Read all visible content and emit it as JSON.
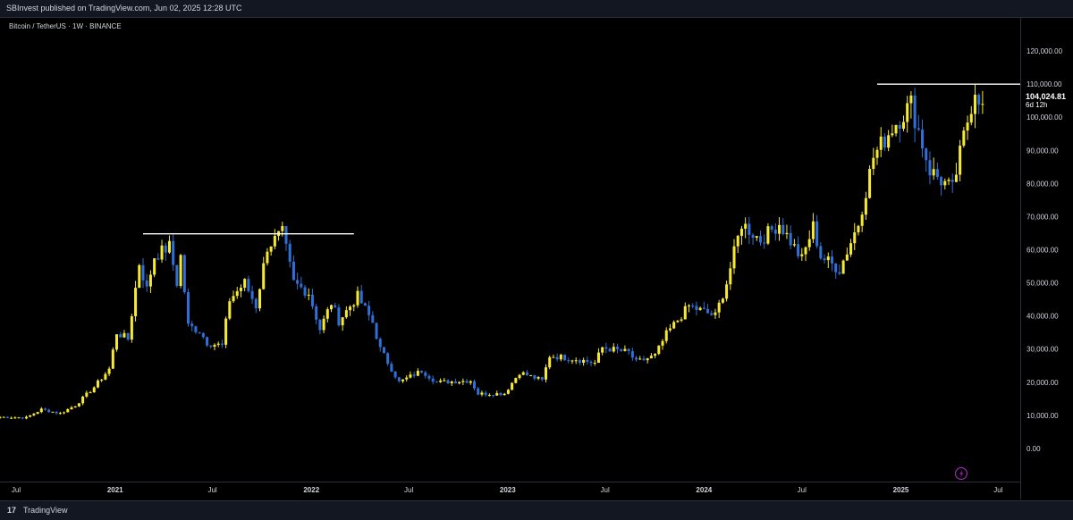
{
  "header": {
    "published": "SBInvest published on TradingView.com, Jun 02, 2025 12:28 UTC"
  },
  "symbol_line": "Bitcoin / TetherUS · 1W · BINANCE",
  "footer": {
    "brand": "TradingView",
    "logo_text": "17"
  },
  "price_label": {
    "value": "104,024.81",
    "countdown": "6d 12h"
  },
  "colors": {
    "up": "#f7e92f",
    "down": "#2f6fd6",
    "background": "#000000",
    "bars": "#131722",
    "line": "#ffffff",
    "lightning": "#9c27b0"
  },
  "icons": {
    "lightning": "lightning-icon",
    "logo": "tradingview-logo-icon"
  },
  "chart_data": {
    "type": "candlestick",
    "title": "Bitcoin / TetherUS · 1W · BINANCE",
    "ylim": [
      -10000,
      130000
    ],
    "y_ticks": [
      0,
      10000,
      20000,
      30000,
      40000,
      50000,
      60000,
      70000,
      80000,
      90000,
      100000,
      110000,
      120000
    ],
    "y_tick_labels": [
      "0.00",
      "10,000.00",
      "20,000.00",
      "30,000.00",
      "40,000.00",
      "50,000.00",
      "60,000.00",
      "70,000.00",
      "80,000.00",
      "90,000.00",
      "100,000.00",
      "110,000.00",
      "120,000.00"
    ],
    "x_range": [
      "2020-06-01",
      "2025-08-11"
    ],
    "x_ticks": [
      {
        "date": "2020-07-01",
        "label": "Jul",
        "bold": false
      },
      {
        "date": "2021-01-01",
        "label": "2021",
        "bold": true
      },
      {
        "date": "2021-07-01",
        "label": "Jul",
        "bold": false
      },
      {
        "date": "2022-01-01",
        "label": "2022",
        "bold": true
      },
      {
        "date": "2022-07-01",
        "label": "Jul",
        "bold": false
      },
      {
        "date": "2023-01-01",
        "label": "2023",
        "bold": true
      },
      {
        "date": "2023-07-01",
        "label": "Jul",
        "bold": false
      },
      {
        "date": "2024-01-01",
        "label": "2024",
        "bold": true
      },
      {
        "date": "2024-07-01",
        "label": "Jul",
        "bold": false
      },
      {
        "date": "2025-01-01",
        "label": "2025",
        "bold": true
      },
      {
        "date": "2025-07-01",
        "label": "Jul",
        "bold": false
      }
    ],
    "close_path": [
      [
        "2020-06-01",
        9500
      ],
      [
        "2020-07-20",
        9300
      ],
      [
        "2020-08-17",
        11800
      ],
      [
        "2020-09-21",
        10600
      ],
      [
        "2020-10-19",
        13000
      ],
      [
        "2020-11-23",
        18500
      ],
      [
        "2020-12-21",
        24000
      ],
      [
        "2021-01-04",
        35000
      ],
      [
        "2021-01-25",
        33000
      ],
      [
        "2021-02-15",
        56000
      ],
      [
        "2021-03-01",
        48000
      ],
      [
        "2021-03-15",
        58000
      ],
      [
        "2021-04-12",
        61000
      ],
      [
        "2021-04-26",
        50000
      ],
      [
        "2021-05-03",
        58000
      ],
      [
        "2021-05-17",
        37000
      ],
      [
        "2021-06-07",
        35500
      ],
      [
        "2021-06-21",
        32000
      ],
      [
        "2021-07-19",
        31000
      ],
      [
        "2021-08-02",
        45000
      ],
      [
        "2021-08-30",
        50000
      ],
      [
        "2021-09-20",
        43000
      ],
      [
        "2021-10-11",
        61000
      ],
      [
        "2021-11-08",
        65000
      ],
      [
        "2021-11-29",
        50000
      ],
      [
        "2021-12-27",
        47000
      ],
      [
        "2022-01-17",
        36000
      ],
      [
        "2022-02-07",
        44000
      ],
      [
        "2022-02-21",
        38500
      ],
      [
        "2022-03-28",
        46000
      ],
      [
        "2022-04-25",
        38000
      ],
      [
        "2022-05-09",
        30000
      ],
      [
        "2022-06-13",
        20000
      ],
      [
        "2022-07-25",
        23500
      ],
      [
        "2022-08-22",
        20000
      ],
      [
        "2022-10-24",
        20500
      ],
      [
        "2022-11-07",
        16500
      ],
      [
        "2022-12-26",
        16600
      ],
      [
        "2023-01-23",
        23000
      ],
      [
        "2023-03-06",
        20500
      ],
      [
        "2023-03-20",
        28000
      ],
      [
        "2023-05-08",
        27000
      ],
      [
        "2023-06-12",
        25800
      ],
      [
        "2023-06-26",
        30500
      ],
      [
        "2023-08-14",
        29000
      ],
      [
        "2023-08-28",
        26000
      ],
      [
        "2023-10-02",
        28000
      ],
      [
        "2023-10-23",
        34500
      ],
      [
        "2023-12-04",
        43000
      ],
      [
        "2024-01-22",
        40000
      ],
      [
        "2024-02-12",
        50000
      ],
      [
        "2024-03-11",
        68000
      ],
      [
        "2024-04-15",
        63000
      ],
      [
        "2024-05-20",
        68000
      ],
      [
        "2024-07-01",
        57000
      ],
      [
        "2024-07-22",
        67000
      ],
      [
        "2024-08-05",
        58000
      ],
      [
        "2024-09-09",
        54000
      ],
      [
        "2024-10-14",
        68000
      ],
      [
        "2024-11-11",
        88000
      ],
      [
        "2024-12-16",
        97000
      ],
      [
        "2025-01-20",
        104000
      ],
      [
        "2025-02-24",
        84000
      ],
      [
        "2025-03-10",
        82000
      ],
      [
        "2025-04-07",
        78000
      ],
      [
        "2025-04-28",
        94000
      ],
      [
        "2025-05-19",
        109000
      ],
      [
        "2025-06-02",
        104024.81
      ]
    ],
    "resistance_lines": [
      {
        "from": "2021-02-22",
        "to": "2022-03-21",
        "price": 64800
      },
      {
        "from": "2024-11-18",
        "to": "2025-08-11",
        "price": 110000
      }
    ],
    "last_price": 104024.81
  }
}
